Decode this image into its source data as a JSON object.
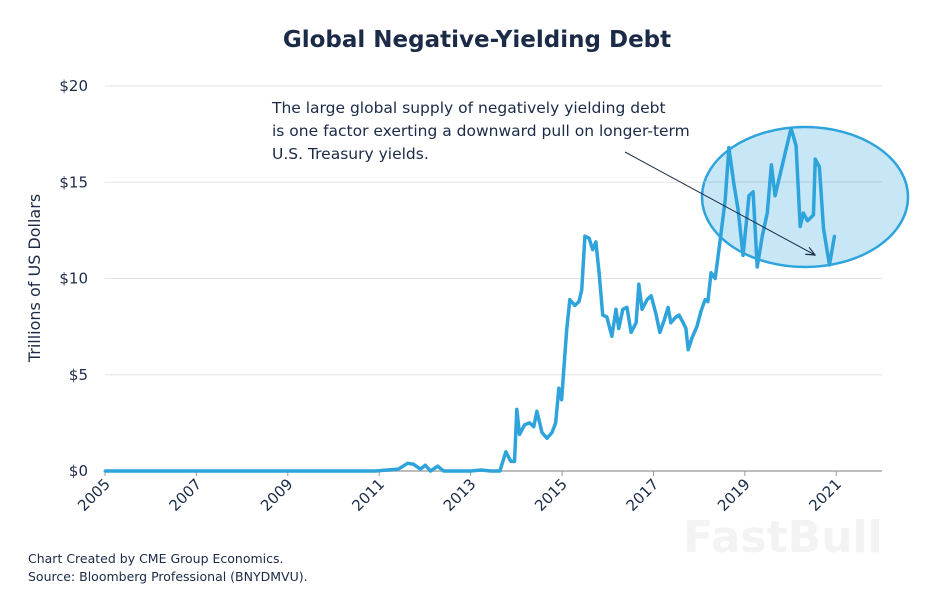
{
  "chart_data": {
    "type": "line",
    "title": "Global Negative-Yielding Debt",
    "xlabel": "",
    "ylabel": "Trillions of US Dollars",
    "xlim": [
      2005,
      2022
    ],
    "ylim": [
      0,
      20
    ],
    "x_ticks": [
      "2005",
      "2007",
      "2009",
      "2011",
      "2013",
      "2015",
      "2017",
      "2019",
      "2021"
    ],
    "y_ticks": [
      "$0",
      "$5",
      "$10",
      "$15",
      "$20"
    ],
    "grid": true,
    "line_color": "#2ea3dc",
    "annotation": {
      "lines": [
        "The large global supply of negatively yielding debt",
        "is one factor exerting a downward pull on longer-term",
        "U.S. Treasury yields."
      ],
      "highlight_color": "#c7e7f7"
    },
    "series": [
      {
        "x": [
          2005.0,
          2010.92,
          2011.42,
          2011.62,
          2011.75,
          2011.9,
          2012.01,
          2012.12,
          2012.28,
          2012.41,
          2013.0,
          2013.22,
          2013.44,
          2013.64,
          2013.77,
          2013.88,
          2013.96,
          2014.01,
          2014.07,
          2014.18,
          2014.29,
          2014.38,
          2014.45,
          2014.56,
          2014.67,
          2014.78,
          2014.86,
          2014.93,
          2014.99,
          2015.1,
          2015.17,
          2015.28,
          2015.37,
          2015.43,
          2015.5,
          2015.59,
          2015.67,
          2015.74,
          2015.81,
          2015.89,
          2015.98,
          2016.09,
          2016.18,
          2016.24,
          2016.33,
          2016.42,
          2016.51,
          2016.62,
          2016.68,
          2016.75,
          2016.86,
          2016.95,
          2017.05,
          2017.14,
          2017.23,
          2017.32,
          2017.38,
          2017.49,
          2017.56,
          2017.65,
          2017.71,
          2017.76,
          2017.84,
          2017.95,
          2018.04,
          2018.13,
          2018.19,
          2018.26,
          2018.35,
          2018.46,
          2018.57,
          2018.65,
          2018.76,
          2018.85,
          2018.96,
          2019.09,
          2019.18,
          2019.27,
          2019.38,
          2019.49,
          2019.58,
          2019.66,
          2019.79,
          2019.9,
          2020.01,
          2020.12,
          2020.21,
          2020.28,
          2020.37,
          2020.5,
          2020.54,
          2020.63,
          2020.72,
          2020.85,
          2020.96
        ],
        "values": [
          0,
          0,
          0.1,
          0.4,
          0.35,
          0.1,
          0.3,
          0.0,
          0.25,
          0.0,
          0.0,
          0.05,
          0.0,
          0.0,
          1.0,
          0.5,
          0.5,
          3.2,
          1.9,
          2.4,
          2.5,
          2.3,
          3.1,
          2.0,
          1.7,
          2.0,
          2.5,
          4.3,
          3.7,
          7.3,
          8.9,
          8.6,
          8.8,
          9.4,
          12.2,
          12.1,
          11.5,
          11.9,
          10.3,
          8.1,
          8.0,
          7.0,
          8.4,
          7.4,
          8.4,
          8.5,
          7.2,
          7.7,
          9.7,
          8.4,
          8.9,
          9.1,
          8.2,
          7.2,
          7.8,
          8.5,
          7.7,
          8.0,
          8.1,
          7.7,
          7.4,
          6.3,
          6.9,
          7.5,
          8.3,
          8.9,
          8.8,
          10.3,
          10.0,
          12.0,
          14.1,
          16.8,
          14.9,
          13.6,
          11.2,
          14.3,
          14.5,
          10.6,
          12.2,
          13.4,
          15.9,
          14.3,
          15.6,
          16.7,
          17.8,
          16.9,
          12.7,
          13.4,
          13.0,
          13.3,
          16.2,
          15.8,
          12.6,
          10.7,
          12.2
        ]
      }
    ]
  },
  "footer": {
    "credit": "Chart Created by CME Group Economics.",
    "source": "Source:  Bloomberg Professional (BNYDMVU)."
  },
  "watermark": "FastBull"
}
